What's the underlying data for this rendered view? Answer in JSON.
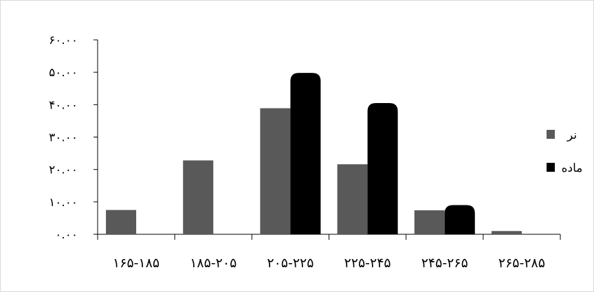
{
  "chart_data": {
    "type": "bar",
    "categories": [
      "۱۶۵-۱۸۵",
      "۱۸۵-۲۰۵",
      "۲۰۵-۲۲۵",
      "۲۲۵-۲۴۵",
      "۲۴۵-۲۶۵",
      "۲۶۵-۲۸۵"
    ],
    "series": [
      {
        "name": "نر",
        "values": [
          7.5,
          22.8,
          38.9,
          21.6,
          7.4,
          1.0
        ],
        "color": "#595959"
      },
      {
        "name": "ماده",
        "values": [
          0,
          0,
          49.8,
          40.5,
          9.0,
          0
        ],
        "color": "#000000"
      }
    ],
    "y_ticks": [
      "۰.۰۰",
      "۱۰.۰۰",
      "۲۰.۰۰",
      "۳۰.۰۰",
      "۴۰.۰۰",
      "۵۰.۰۰",
      "۶۰.۰۰"
    ],
    "ylim": [
      0,
      60
    ],
    "title": "",
    "xlabel": "",
    "ylabel": "",
    "legend_position": "right",
    "grid": false
  }
}
